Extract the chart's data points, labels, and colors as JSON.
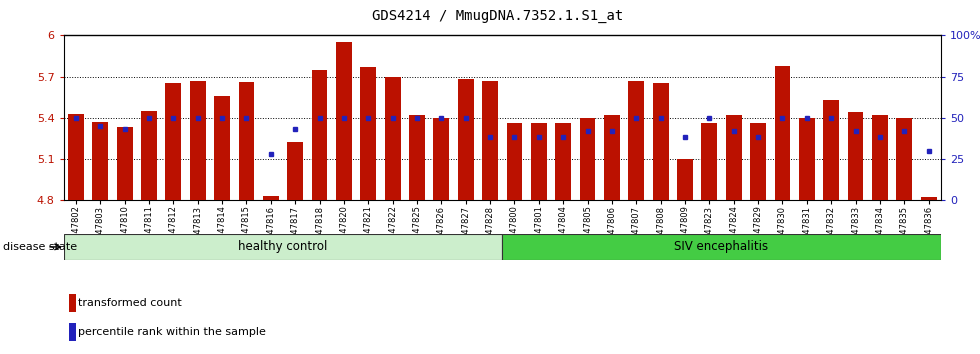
{
  "title": "GDS4214 / MmugDNA.7352.1.S1_at",
  "samples": [
    "GSM347802",
    "GSM347803",
    "GSM347810",
    "GSM347811",
    "GSM347812",
    "GSM347813",
    "GSM347814",
    "GSM347815",
    "GSM347816",
    "GSM347817",
    "GSM347818",
    "GSM347820",
    "GSM347821",
    "GSM347822",
    "GSM347825",
    "GSM347826",
    "GSM347827",
    "GSM347828",
    "GSM347800",
    "GSM347801",
    "GSM347804",
    "GSM347805",
    "GSM347806",
    "GSM347807",
    "GSM347808",
    "GSM347809",
    "GSM347823",
    "GSM347824",
    "GSM347829",
    "GSM347830",
    "GSM347831",
    "GSM347832",
    "GSM347833",
    "GSM347834",
    "GSM347835",
    "GSM347836"
  ],
  "bar_values": [
    5.43,
    5.37,
    5.33,
    5.45,
    5.65,
    5.67,
    5.56,
    5.66,
    4.83,
    5.22,
    5.75,
    5.95,
    5.77,
    5.7,
    5.42,
    5.4,
    5.68,
    5.67,
    5.36,
    5.36,
    5.36,
    5.4,
    5.42,
    5.67,
    5.65,
    5.1,
    5.36,
    5.42,
    5.36,
    5.78,
    5.4,
    5.53,
    5.44,
    5.42,
    5.4,
    4.82
  ],
  "percentile_values": [
    50,
    45,
    43,
    50,
    50,
    50,
    50,
    50,
    28,
    43,
    50,
    50,
    50,
    50,
    50,
    50,
    50,
    38,
    38,
    38,
    38,
    42,
    42,
    50,
    50,
    38,
    50,
    42,
    38,
    50,
    50,
    50,
    42,
    38,
    42,
    30
  ],
  "bar_color": "#bb1100",
  "dot_color": "#2222bb",
  "base_value": 4.8,
  "ylim_left": [
    4.8,
    6.0
  ],
  "ylim_right": [
    0,
    100
  ],
  "yticks_left": [
    4.8,
    5.1,
    5.4,
    5.7,
    6.0
  ],
  "yticks_right": [
    0,
    25,
    50,
    75,
    100
  ],
  "ytick_labels_left": [
    "4.8",
    "5.1",
    "5.4",
    "5.7",
    "6"
  ],
  "ytick_labels_right": [
    "0",
    "25",
    "50",
    "75",
    "100%"
  ],
  "hlines": [
    5.1,
    5.4,
    5.7
  ],
  "healthy_label": "healthy control",
  "siv_label": "SIV encephalitis",
  "n_healthy": 18,
  "disease_label": "disease state",
  "legend_bar_label": "transformed count",
  "legend_dot_label": "percentile rank within the sample",
  "healthy_color": "#cceecc",
  "siv_color": "#44cc44",
  "band_edge_color": "#333333"
}
